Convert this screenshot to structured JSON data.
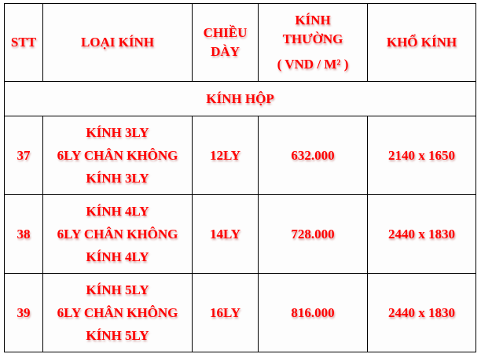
{
  "header": {
    "stt": "STT",
    "loai_kinh": "LOẠI KÍNH",
    "chieu_day": [
      "CHIỀU",
      "DÀY"
    ],
    "kinh_thuong": [
      "KÍNH",
      "THƯỜNG",
      "( VND / M² )"
    ],
    "kho_kinh": "KHỔ KÍNH"
  },
  "section": "KÍNH HỘP",
  "rows": [
    {
      "stt": "37",
      "loai": [
        "KÍNH 3LY",
        "6LY CHÂN KHÔNG",
        "KÍNH 3LY"
      ],
      "day": "12LY",
      "gia": "632.000",
      "kho": "2140 x 1650"
    },
    {
      "stt": "38",
      "loai": [
        "KÍNH 4LY",
        "6LY CHÂN KHÔNG",
        "KÍNH 4LY"
      ],
      "day": "14LY",
      "gia": "728.000",
      "kho": "2440 x 1830"
    },
    {
      "stt": "39",
      "loai": [
        "KÍNH 5LY",
        "6LY CHÂN KHÔNG",
        "KÍNH 5LY"
      ],
      "day": "16LY",
      "gia": "816.000",
      "kho": "2440 x 1830"
    }
  ]
}
